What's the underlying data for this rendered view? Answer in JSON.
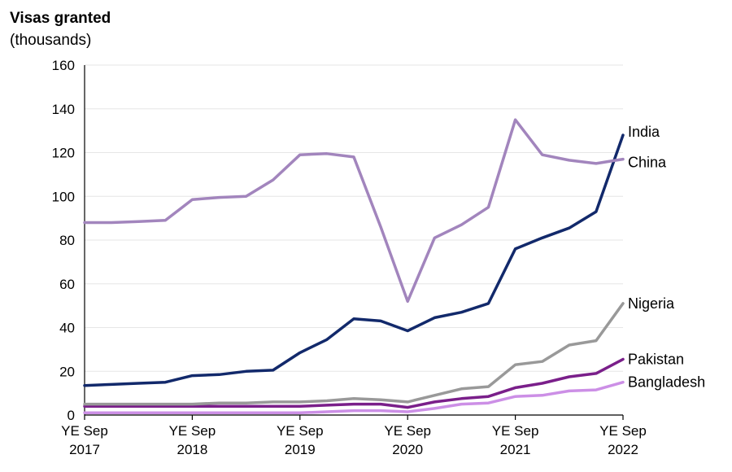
{
  "chart_data": {
    "type": "line",
    "title": "Visas granted",
    "subtitle": "(thousands)",
    "ylim": [
      0,
      160
    ],
    "yticks": [
      0,
      20,
      40,
      60,
      80,
      100,
      120,
      140,
      160
    ],
    "x": [
      "YE Sep 2017",
      "YE Dec 2017",
      "YE Mar 2018",
      "YE Jun 2018",
      "YE Sep 2018",
      "YE Dec 2018",
      "YE Mar 2019",
      "YE Jun 2019",
      "YE Sep 2019",
      "YE Dec 2019",
      "YE Mar 2020",
      "YE Jun 2020",
      "YE Sep 2020",
      "YE Dec 2020",
      "YE Mar 2021",
      "YE Jun 2021",
      "YE Sep 2021",
      "YE Dec 2021",
      "YE Mar 2022",
      "YE Jun 2022",
      "YE Sep 2022"
    ],
    "xtick_labels": [
      {
        "index": 0,
        "line1": "YE Sep",
        "line2": "2017"
      },
      {
        "index": 4,
        "line1": "YE Sep",
        "line2": "2018"
      },
      {
        "index": 8,
        "line1": "YE Sep",
        "line2": "2019"
      },
      {
        "index": 12,
        "line1": "YE Sep",
        "line2": "2020"
      },
      {
        "index": 16,
        "line1": "YE Sep",
        "line2": "2021"
      },
      {
        "index": 20,
        "line1": "YE Sep",
        "line2": "2022"
      }
    ],
    "grid": true,
    "legend": "direct labels at line ends",
    "series": [
      {
        "name": "China",
        "color": "#a285bd",
        "label_offset": 4,
        "values": [
          88,
          88,
          88.5,
          89,
          98.5,
          99.5,
          100,
          107.5,
          119,
          119.5,
          118,
          86,
          52,
          81,
          87,
          95,
          135,
          119,
          116.5,
          115,
          117
        ]
      },
      {
        "name": "India",
        "color": "#12296b",
        "label_offset": -4,
        "values": [
          13.5,
          14,
          14.5,
          15,
          18,
          18.5,
          20,
          20.5,
          28.5,
          34.5,
          44,
          43,
          38.5,
          44.5,
          47,
          51,
          76,
          81,
          85.5,
          93,
          128
        ]
      },
      {
        "name": "Nigeria",
        "color": "#999999",
        "label_offset": 0,
        "values": [
          5,
          5,
          5,
          5,
          5,
          5.5,
          5.5,
          6,
          6,
          6.5,
          7.5,
          7,
          6,
          9,
          12,
          13,
          23,
          24.5,
          32,
          34,
          51
        ]
      },
      {
        "name": "Pakistan",
        "color": "#7a1f8a",
        "label_offset": 0,
        "values": [
          4,
          4,
          4,
          4,
          4,
          4,
          4,
          4,
          4,
          4.5,
          5,
          5,
          3.5,
          6,
          7.5,
          8.5,
          12.5,
          14.5,
          17.5,
          19,
          25.5
        ]
      },
      {
        "name": "Bangladesh",
        "color": "#cc8fe6",
        "label_offset": 0,
        "values": [
          1,
          1,
          1,
          1,
          1,
          1,
          1,
          1,
          1,
          1.5,
          2,
          2,
          1.5,
          3,
          5,
          5.5,
          8.5,
          9,
          11,
          11.5,
          15
        ]
      }
    ]
  }
}
